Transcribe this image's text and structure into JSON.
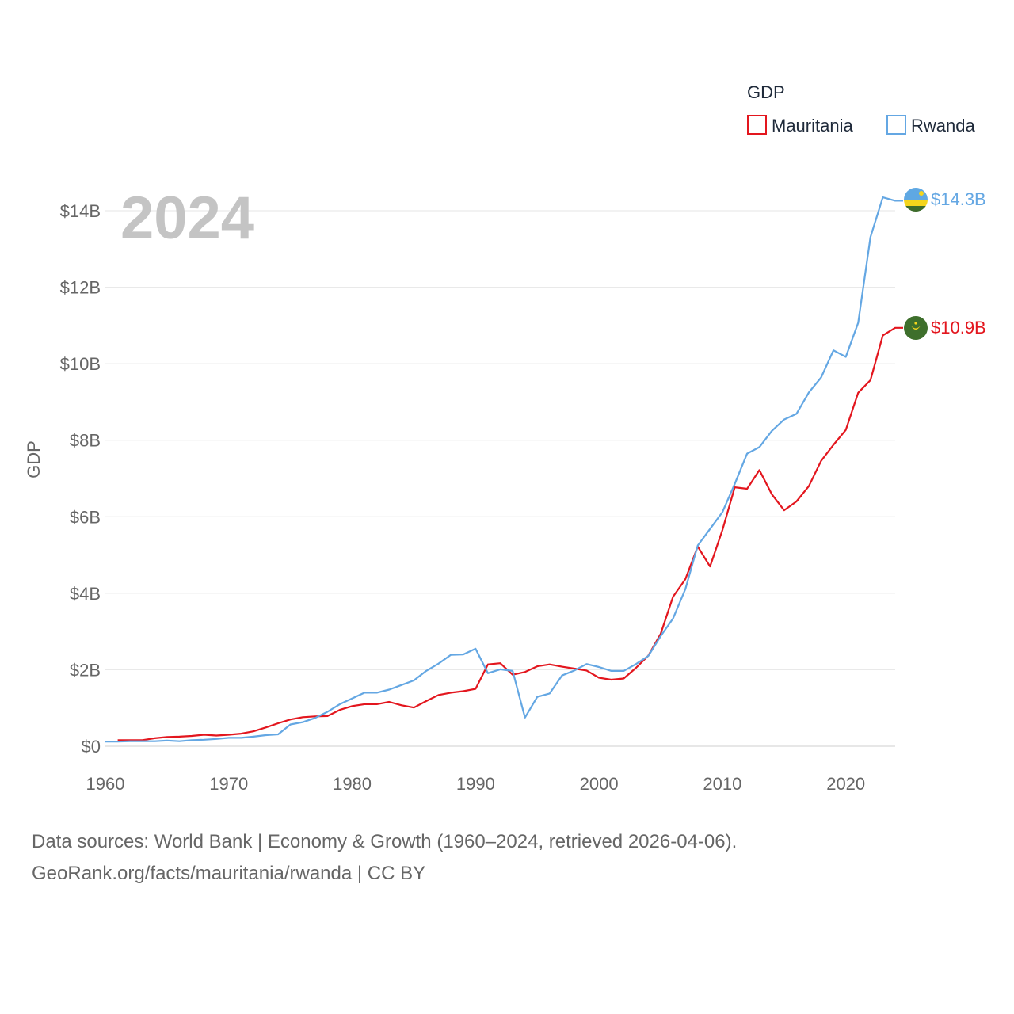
{
  "footer": {
    "line1": "Data sources: World Bank | Economy & Growth (1960–2024, retrieved 2026-04-06).",
    "line2": "GeoRank.org/facts/mauritania/rwanda | CC BY"
  },
  "year_label": "2024",
  "chart_data": {
    "type": "line",
    "title": "",
    "xlabel": "",
    "ylabel": "GDP",
    "xlim": [
      1960,
      2024
    ],
    "ylim": [
      0,
      14
    ],
    "unit": "billion USD",
    "x_ticks": [
      1960,
      1970,
      1980,
      1990,
      2000,
      2010,
      2020
    ],
    "x_tick_labels": [
      "1960",
      "1970",
      "1980",
      "1990",
      "2000",
      "2010",
      "2020"
    ],
    "y_ticks": [
      0,
      2,
      4,
      6,
      8,
      10,
      12,
      14
    ],
    "y_tick_labels": [
      "$0",
      "$2B",
      "$4B",
      "$6B",
      "$8B",
      "$10B",
      "$12B",
      "$14B"
    ],
    "grid": true,
    "legend": {
      "title": "GDP",
      "position": "top-right"
    },
    "x": [
      1960,
      1961,
      1962,
      1963,
      1964,
      1965,
      1966,
      1967,
      1968,
      1969,
      1970,
      1971,
      1972,
      1973,
      1974,
      1975,
      1976,
      1977,
      1978,
      1979,
      1980,
      1981,
      1982,
      1983,
      1984,
      1985,
      1986,
      1987,
      1988,
      1989,
      1990,
      1991,
      1992,
      1993,
      1994,
      1995,
      1996,
      1997,
      1998,
      1999,
      2000,
      2001,
      2002,
      2003,
      2004,
      2005,
      2006,
      2007,
      2008,
      2009,
      2010,
      2011,
      2012,
      2013,
      2014,
      2015,
      2016,
      2017,
      2018,
      2019,
      2020,
      2021,
      2022,
      2023,
      2024
    ],
    "series": [
      {
        "name": "Mauritania",
        "color": "#e3161e",
        "end_label": "$10.9B",
        "flag": "mauritania-flag-icon",
        "values": [
          null,
          0.16,
          0.16,
          0.16,
          0.21,
          0.24,
          0.25,
          0.27,
          0.3,
          0.28,
          0.3,
          0.33,
          0.39,
          0.49,
          0.6,
          0.7,
          0.76,
          0.78,
          0.79,
          0.95,
          1.05,
          1.1,
          1.1,
          1.16,
          1.07,
          1.01,
          1.18,
          1.34,
          1.4,
          1.44,
          1.5,
          2.14,
          2.17,
          1.87,
          1.94,
          2.09,
          2.14,
          2.08,
          2.03,
          1.98,
          1.79,
          1.74,
          1.77,
          2.05,
          2.37,
          2.94,
          3.91,
          4.37,
          5.22,
          4.7,
          5.65,
          6.77,
          6.73,
          7.22,
          6.59,
          6.17,
          6.4,
          6.8,
          7.46,
          7.88,
          8.27,
          9.24,
          9.57,
          10.74,
          10.94
        ]
      },
      {
        "name": "Rwanda",
        "color": "#64a7e3",
        "end_label": "$14.3B",
        "flag": "rwanda-flag-icon",
        "values": [
          0.12,
          0.12,
          0.13,
          0.13,
          0.13,
          0.15,
          0.13,
          0.16,
          0.17,
          0.19,
          0.22,
          0.22,
          0.25,
          0.29,
          0.31,
          0.57,
          0.63,
          0.74,
          0.9,
          1.1,
          1.25,
          1.4,
          1.4,
          1.48,
          1.6,
          1.72,
          1.97,
          2.16,
          2.39,
          2.4,
          2.55,
          1.91,
          2.01,
          1.97,
          0.75,
          1.29,
          1.38,
          1.85,
          1.98,
          2.15,
          2.07,
          1.97,
          1.97,
          2.15,
          2.36,
          2.88,
          3.34,
          4.11,
          5.25,
          5.68,
          6.12,
          6.86,
          7.65,
          7.82,
          8.24,
          8.54,
          8.69,
          9.25,
          9.64,
          10.35,
          10.18,
          11.07,
          13.31,
          14.35,
          14.26
        ]
      }
    ]
  }
}
